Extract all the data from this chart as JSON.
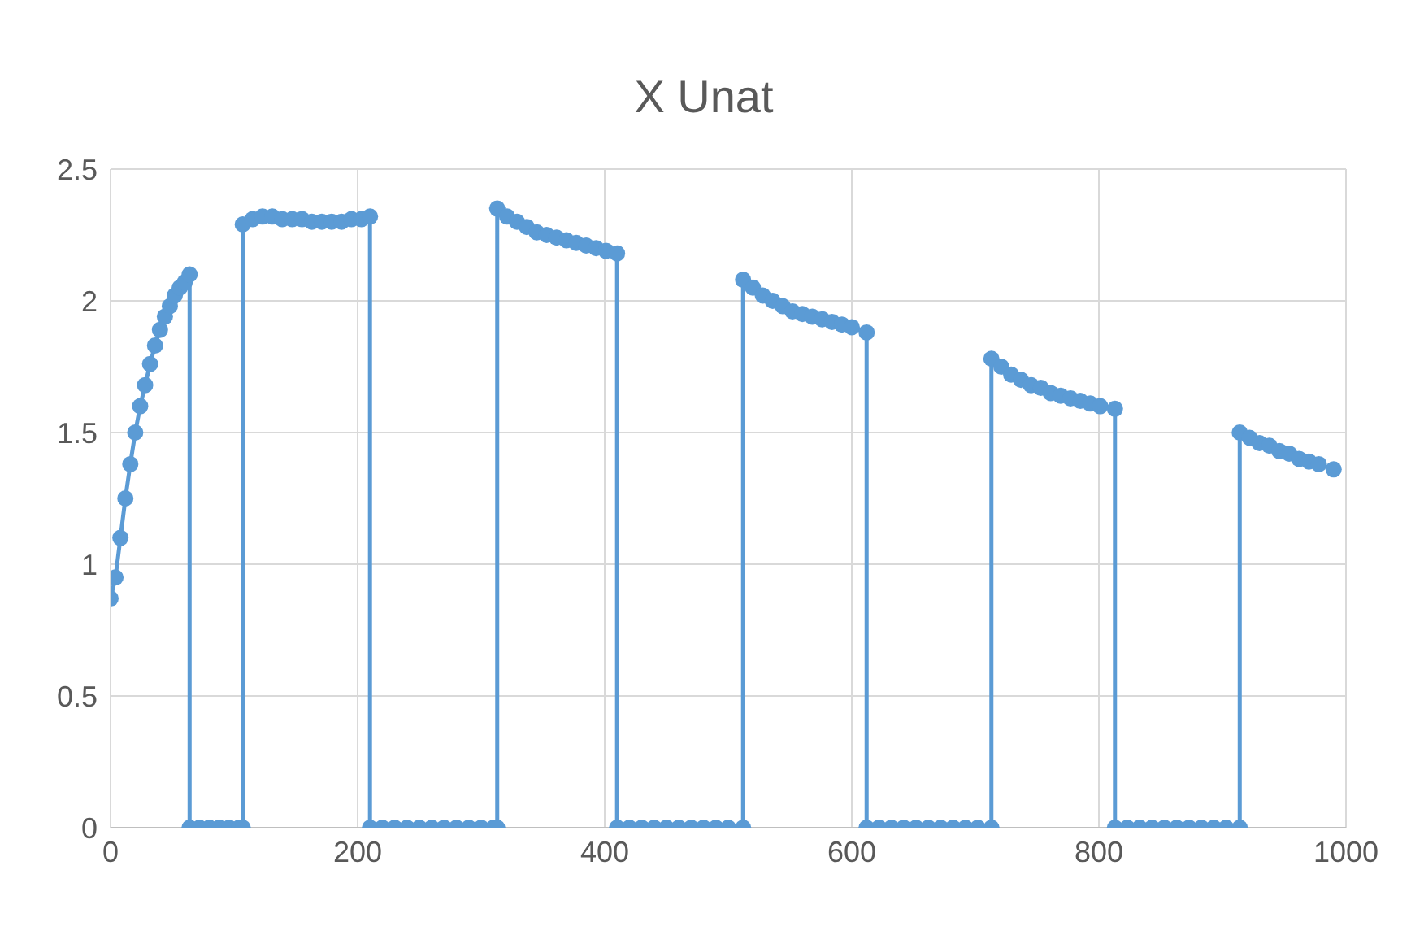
{
  "chart_data": {
    "type": "line",
    "title": "X Unat",
    "x": [
      0,
      4,
      8,
      12,
      16,
      20,
      24,
      28,
      32,
      36,
      40,
      44,
      48,
      52,
      56,
      60,
      64,
      64,
      72,
      80,
      88,
      96,
      104,
      107,
      107,
      115,
      123,
      131,
      139,
      147,
      155,
      163,
      171,
      179,
      187,
      195,
      203,
      210,
      210,
      220,
      230,
      240,
      250,
      260,
      270,
      280,
      290,
      300,
      310,
      313,
      313,
      321,
      329,
      337,
      345,
      353,
      361,
      369,
      377,
      385,
      393,
      401,
      410,
      410,
      420,
      430,
      440,
      450,
      460,
      470,
      480,
      490,
      500,
      512,
      512,
      520,
      528,
      536,
      544,
      552,
      560,
      568,
      576,
      584,
      592,
      600,
      612,
      612,
      622,
      632,
      642,
      652,
      662,
      672,
      682,
      692,
      702,
      713,
      713,
      721,
      729,
      737,
      745,
      753,
      761,
      769,
      777,
      785,
      793,
      801,
      813,
      813,
      823,
      833,
      843,
      853,
      863,
      873,
      883,
      893,
      903,
      914,
      914,
      922,
      930,
      938,
      946,
      954,
      962,
      970,
      978,
      990
    ],
    "series": [
      {
        "color": "#5b9bd5",
        "values": [
          0.87,
          0.95,
          1.1,
          1.25,
          1.38,
          1.5,
          1.6,
          1.68,
          1.76,
          1.83,
          1.89,
          1.94,
          1.98,
          2.02,
          2.05,
          2.07,
          2.1,
          0,
          0,
          0,
          0,
          0,
          0,
          0,
          2.29,
          2.31,
          2.32,
          2.32,
          2.31,
          2.31,
          2.31,
          2.3,
          2.3,
          2.3,
          2.3,
          2.31,
          2.31,
          2.32,
          0,
          0,
          0,
          0,
          0,
          0,
          0,
          0,
          0,
          0,
          0,
          0,
          2.35,
          2.32,
          2.3,
          2.28,
          2.26,
          2.25,
          2.24,
          2.23,
          2.22,
          2.21,
          2.2,
          2.19,
          2.18,
          0,
          0,
          0,
          0,
          0,
          0,
          0,
          0,
          0,
          0,
          0,
          2.08,
          2.05,
          2.02,
          2.0,
          1.98,
          1.96,
          1.95,
          1.94,
          1.93,
          1.92,
          1.91,
          1.9,
          1.88,
          0,
          0,
          0,
          0,
          0,
          0,
          0,
          0,
          0,
          0,
          0,
          1.78,
          1.75,
          1.72,
          1.7,
          1.68,
          1.67,
          1.65,
          1.64,
          1.63,
          1.62,
          1.61,
          1.6,
          1.59,
          0,
          0,
          0,
          0,
          0,
          0,
          0,
          0,
          0,
          0,
          0,
          1.5,
          1.48,
          1.46,
          1.45,
          1.43,
          1.42,
          1.4,
          1.39,
          1.38,
          1.36
        ]
      }
    ],
    "xlim": [
      0,
      1000
    ],
    "xticks": [
      0,
      200,
      400,
      600,
      800,
      1000
    ],
    "ylim": [
      0,
      2.5
    ],
    "yticks": [
      0,
      0.5,
      1,
      1.5,
      2,
      2.5
    ],
    "grid": true,
    "marker": "circle",
    "line_style": "solid"
  }
}
